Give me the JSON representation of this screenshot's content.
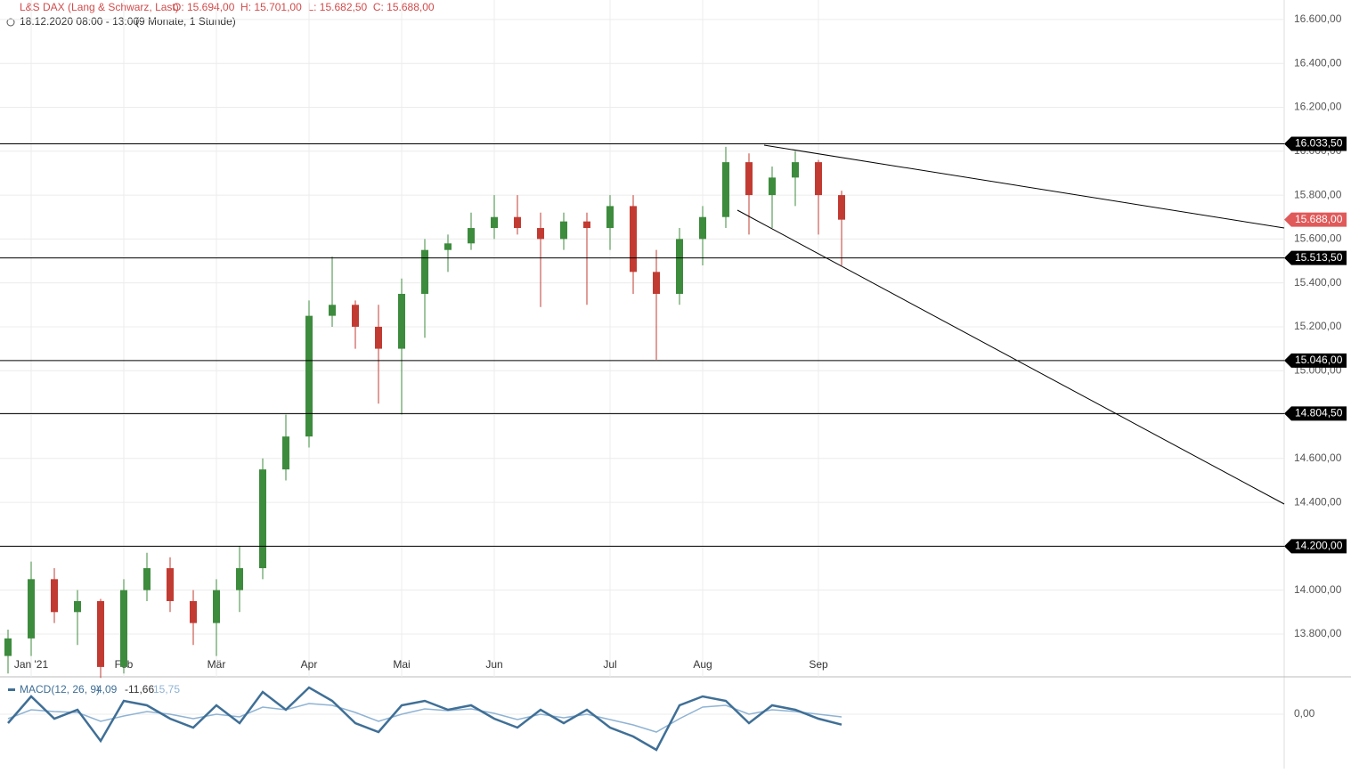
{
  "header": {
    "instrument": "L&S DAX (Lang & Schwarz, Last)",
    "ohlc": "O: 15.694,00  H: 15.701,00  L: 15.682,50  C: 15.688,00",
    "date": "18.12.2020 08:00 - 13:00",
    "range": "(9 Monate, 1 Stunde)"
  },
  "chart_data": [
    {
      "type": "candlestick",
      "categories": [
        null,
        "Jan '21",
        null,
        null,
        null,
        "Feb",
        null,
        null,
        null,
        "Mär",
        null,
        null,
        null,
        "Apr",
        null,
        null,
        null,
        "Mai",
        null,
        null,
        null,
        "Jun",
        null,
        null,
        null,
        null,
        "Jul",
        null,
        null,
        null,
        "Aug",
        null,
        null,
        null,
        null,
        "Sep",
        null
      ],
      "open": [
        13700,
        13780,
        14050,
        13900,
        13950,
        13650,
        14000,
        14100,
        13950,
        13850,
        14000,
        14100,
        14550,
        14700,
        15250,
        15300,
        15200,
        15100,
        15350,
        15550,
        15580,
        15650,
        15700,
        15650,
        15600,
        15680,
        15650,
        15750,
        15450,
        15350,
        15600,
        15700,
        15950,
        15800,
        15880,
        15950,
        15800
      ],
      "high": [
        13820,
        14130,
        14100,
        14000,
        13960,
        14050,
        14170,
        14150,
        14000,
        14050,
        14200,
        14600,
        14800,
        15320,
        15520,
        15320,
        15300,
        15420,
        15600,
        15620,
        15720,
        15800,
        15800,
        15720,
        15720,
        15720,
        15800,
        15800,
        15550,
        15650,
        15750,
        16020,
        15990,
        15930,
        16000,
        15960,
        15820
      ],
      "low": [
        13620,
        13700,
        13850,
        13750,
        13600,
        13620,
        13950,
        13900,
        13750,
        13700,
        13900,
        14050,
        14500,
        14650,
        15200,
        15100,
        14850,
        14800,
        15150,
        15450,
        15550,
        15600,
        15620,
        15290,
        15550,
        15300,
        15550,
        15350,
        15050,
        15300,
        15480,
        15650,
        15620,
        15650,
        15750,
        15620,
        15480
      ],
      "close": [
        13780,
        14050,
        13900,
        13950,
        13650,
        14000,
        14100,
        13950,
        13850,
        14000,
        14100,
        14550,
        14700,
        15250,
        15300,
        15200,
        15100,
        15350,
        15550,
        15580,
        15650,
        15700,
        15650,
        15600,
        15680,
        15650,
        15750,
        15450,
        15350,
        15600,
        15700,
        15950,
        15800,
        15880,
        15950,
        15800,
        15688
      ],
      "up_color": "#3d8b3d",
      "down_color": "#c23b32",
      "ylim": [
        13605,
        16689
      ],
      "yticks": [
        {
          "value": 13800,
          "label": "13.800,00"
        },
        {
          "value": 14000,
          "label": "14.000,00"
        },
        {
          "value": 14200,
          "label": "14.200,00"
        },
        {
          "value": 14400,
          "label": "14.400,00"
        },
        {
          "value": 14600,
          "label": "14.600,00"
        },
        {
          "value": 14800,
          "label": "14.800,00"
        },
        {
          "value": 15000,
          "label": "15.000,00"
        },
        {
          "value": 15200,
          "label": "15.200,00"
        },
        {
          "value": 15400,
          "label": "15.400,00"
        },
        {
          "value": 15600,
          "label": "15.600,00"
        },
        {
          "value": 15800,
          "label": "15.800,00"
        },
        {
          "value": 16000,
          "label": "16.000,00"
        },
        {
          "value": 16200,
          "label": "16.200,00"
        },
        {
          "value": 16400,
          "label": "16.400,00"
        },
        {
          "value": 16600,
          "label": "16.600,00"
        }
      ],
      "levels": [
        {
          "value": 16033.5,
          "label": "16.033,50"
        },
        {
          "value": 15513.5,
          "label": "15.513,50"
        },
        {
          "value": 15046,
          "label": "15.046,00"
        },
        {
          "value": 14804.5,
          "label": "14.804,50"
        },
        {
          "value": 14200,
          "label": "14.200,00"
        }
      ],
      "last": {
        "value": 15688,
        "label": "15.688,00",
        "color": "#e05a5a"
      },
      "grid": true
    },
    {
      "type": "line",
      "title": "MACD(12, 26, 9)",
      "readout": [
        "4,09",
        "-11,66",
        "15,75"
      ],
      "series": [
        {
          "color": "#3f6f96",
          "values": [
            -10,
            20,
            -5,
            5,
            -30,
            15,
            10,
            -5,
            -15,
            10,
            -10,
            25,
            5,
            30,
            15,
            -10,
            -20,
            10,
            15,
            5,
            10,
            -5,
            -15,
            5,
            -10,
            5,
            -15,
            -25,
            -40,
            10,
            20,
            15,
            -10,
            10,
            5,
            -5,
            -11.66
          ]
        },
        {
          "color": "#8fb3d4",
          "values": [
            -5,
            5,
            3,
            2,
            -8,
            -2,
            3,
            0,
            -5,
            0,
            -3,
            8,
            5,
            12,
            10,
            2,
            -8,
            0,
            6,
            4,
            6,
            1,
            -6,
            0,
            -4,
            0,
            -6,
            -12,
            -20,
            -5,
            8,
            10,
            0,
            5,
            3,
            0,
            -3
          ]
        }
      ],
      "ylim": [
        -60,
        40
      ],
      "yticks": [
        {
          "value": 0,
          "label": "0,00"
        }
      ]
    }
  ]
}
